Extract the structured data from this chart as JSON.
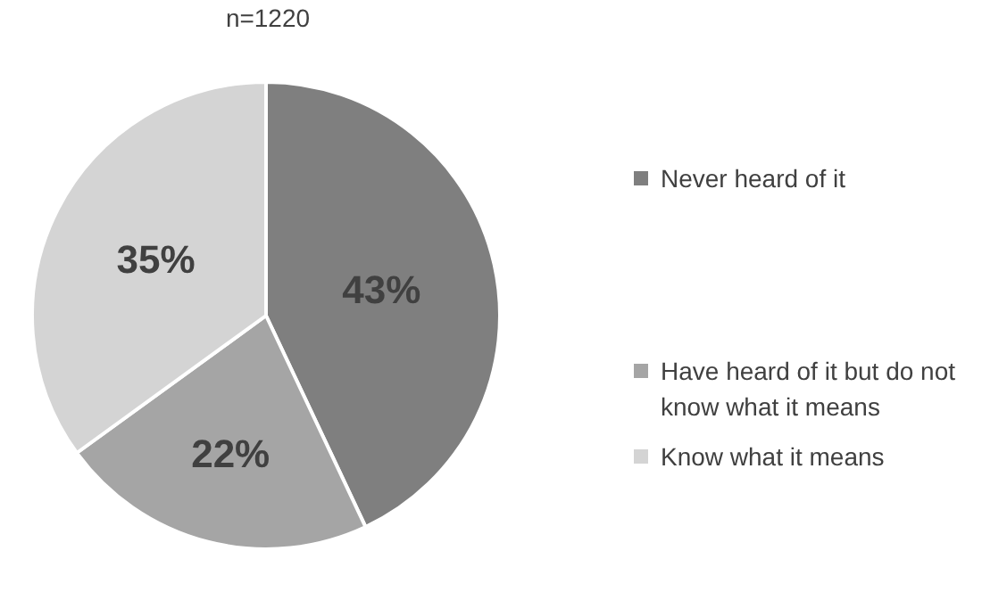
{
  "chart_data": {
    "type": "pie",
    "title": "n=1220",
    "categories": [
      "Never heard of it",
      "Have heard of it but do not know what it means",
      "Know what it means"
    ],
    "values": [
      43,
      22,
      35
    ],
    "colors": [
      "#7f7f7f",
      "#a5a5a5",
      "#d4d4d4"
    ],
    "value_labels": [
      "43%",
      "22%",
      "35%"
    ],
    "legend": "right"
  }
}
